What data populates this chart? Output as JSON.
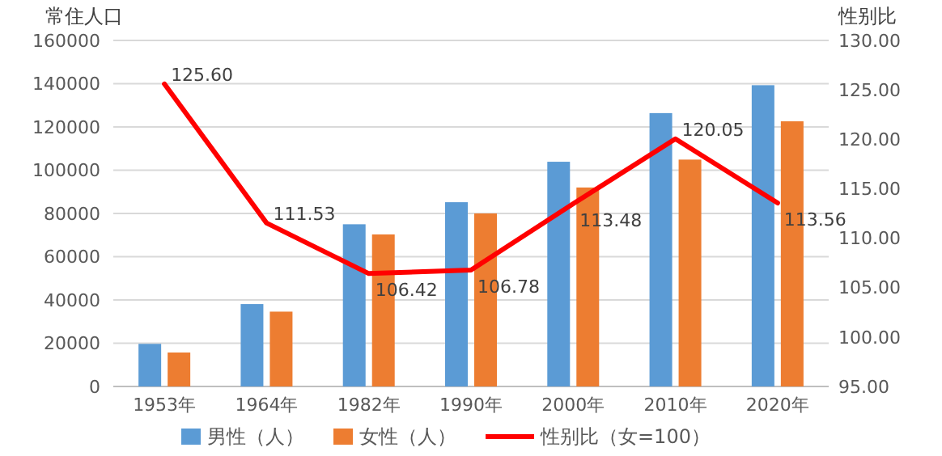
{
  "chart_data": {
    "type": "bar",
    "ylabel": "常住人口",
    "y2label": "性别比",
    "categories": [
      "1953年",
      "1964年",
      "1982年",
      "1990年",
      "2000年",
      "2010年",
      "2020年"
    ],
    "series": [
      {
        "name": "男性（人）",
        "color": "#5b9bd5",
        "values": [
          19700,
          38100,
          75000,
          85200,
          103900,
          126400,
          139300
        ]
      },
      {
        "name": "女性（人）",
        "color": "#ed7d31",
        "values": [
          15700,
          34600,
          70300,
          80000,
          92000,
          104900,
          122600
        ]
      },
      {
        "name": "性别比（女=100）",
        "type": "line",
        "axis": "y2",
        "color": "#ff0000",
        "values": [
          125.6,
          111.53,
          106.42,
          106.78,
          113.48,
          120.05,
          113.56
        ],
        "value_labels": [
          "125.60",
          "111.53",
          "106.42",
          "106.78",
          "113.48",
          "120.05",
          "113.56"
        ]
      }
    ],
    "ylim": [
      0,
      160000
    ],
    "yticks": [
      0,
      20000,
      40000,
      60000,
      80000,
      100000,
      120000,
      140000,
      160000
    ],
    "y2lim": [
      95,
      130
    ],
    "y2ticks": [
      {
        "value": 95,
        "label": "95.00"
      },
      {
        "value": 100,
        "label": "100.00"
      },
      {
        "value": 105,
        "label": "105.00"
      },
      {
        "value": 110,
        "label": "110.00"
      },
      {
        "value": 115,
        "label": "115.00"
      },
      {
        "value": 120,
        "label": "120.00"
      },
      {
        "value": 125,
        "label": "125.00"
      },
      {
        "value": 130,
        "label": "130.00"
      }
    ],
    "grid": "y",
    "legend": "bottom",
    "marker": "none",
    "line_style": "solid"
  }
}
